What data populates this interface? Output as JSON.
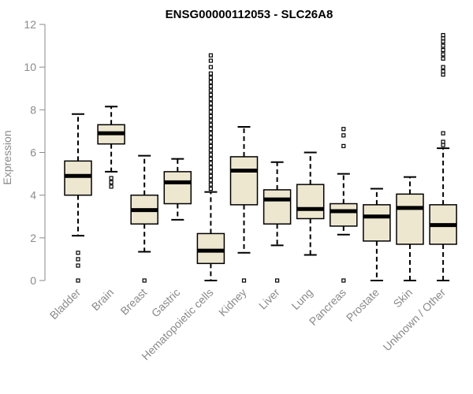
{
  "chart_data": {
    "type": "box",
    "title": "ENSG00000112053 - SLC26A8",
    "ylabel": "Expression",
    "xlabel": "",
    "ylim": [
      0,
      12
    ],
    "yticks": [
      0,
      2,
      4,
      6,
      8,
      10,
      12
    ],
    "colors": {
      "box_fill": "#eee7d0",
      "median": "#000000",
      "axis": "#8a8a8a",
      "text": "#8a8a8a"
    },
    "categories": [
      "Bladder",
      "Brain",
      "Breast",
      "Gastric",
      "Hematopoietic cells",
      "Kidney",
      "Liver",
      "Lung",
      "Pancreas",
      "Prostate",
      "Skin",
      "Unknown / Other"
    ],
    "boxes": [
      {
        "name": "Bladder",
        "min": 2.1,
        "q1": 4.0,
        "median": 4.9,
        "q3": 5.6,
        "max": 7.8,
        "outliers": [
          0.0,
          0.7,
          1.0,
          1.3
        ]
      },
      {
        "name": "Brain",
        "min": 5.1,
        "q1": 6.4,
        "median": 6.9,
        "q3": 7.3,
        "max": 8.15,
        "outliers": [
          4.4,
          4.6,
          4.8
        ]
      },
      {
        "name": "Breast",
        "min": 1.35,
        "q1": 2.65,
        "median": 3.3,
        "q3": 4.0,
        "max": 5.85,
        "outliers": [
          0.0
        ]
      },
      {
        "name": "Gastric",
        "min": 2.85,
        "q1": 3.6,
        "median": 4.6,
        "q3": 5.1,
        "max": 5.7,
        "outliers": []
      },
      {
        "name": "Hematopoietic cells",
        "min": 0.0,
        "q1": 0.8,
        "median": 1.4,
        "q3": 2.2,
        "max": 4.15,
        "outliers": [
          4.3,
          4.5,
          4.7,
          4.9,
          5.1,
          5.3,
          5.5,
          5.7,
          5.9,
          6.1,
          6.3,
          6.5,
          6.7,
          6.9,
          7.1,
          7.3,
          7.5,
          7.7,
          7.9,
          8.1,
          8.3,
          8.5,
          8.7,
          8.9,
          9.1,
          9.3,
          9.5,
          9.7,
          10.0,
          10.3,
          10.55
        ]
      },
      {
        "name": "Kidney",
        "min": 1.3,
        "q1": 3.55,
        "median": 5.15,
        "q3": 5.8,
        "max": 7.2,
        "outliers": [
          0.0
        ]
      },
      {
        "name": "Liver",
        "min": 1.65,
        "q1": 2.65,
        "median": 3.8,
        "q3": 4.25,
        "max": 5.55,
        "outliers": [
          0.0
        ]
      },
      {
        "name": "Lung",
        "min": 1.2,
        "q1": 2.9,
        "median": 3.35,
        "q3": 4.5,
        "max": 6.0,
        "outliers": []
      },
      {
        "name": "Pancreas",
        "min": 2.15,
        "q1": 2.55,
        "median": 3.25,
        "q3": 3.6,
        "max": 5.0,
        "outliers": [
          0.0,
          6.3,
          6.8,
          7.1
        ]
      },
      {
        "name": "Prostate",
        "min": 0.0,
        "q1": 1.85,
        "median": 3.0,
        "q3": 3.55,
        "max": 4.3,
        "outliers": []
      },
      {
        "name": "Skin",
        "min": 0.0,
        "q1": 1.7,
        "median": 3.4,
        "q3": 4.05,
        "max": 4.85,
        "outliers": []
      },
      {
        "name": "Unknown / Other",
        "min": 0.0,
        "q1": 1.7,
        "median": 2.6,
        "q3": 3.55,
        "max": 6.2,
        "outliers": [
          6.35,
          6.5,
          6.9,
          9.65,
          9.8,
          10.0,
          10.4,
          10.6,
          10.8,
          11.0,
          11.2,
          11.35,
          11.5
        ]
      }
    ]
  }
}
